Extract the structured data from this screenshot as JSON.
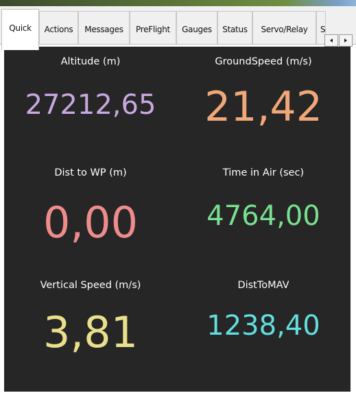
{
  "tabs": [
    {
      "label": "Quick",
      "active": true
    },
    {
      "label": "Actions",
      "active": false
    },
    {
      "label": "Messages",
      "active": false
    },
    {
      "label": "PreFlight",
      "active": false
    },
    {
      "label": "Gauges",
      "active": false
    },
    {
      "label": "Status",
      "active": false
    },
    {
      "label": "Servo/Relay",
      "active": false
    },
    {
      "label": "S",
      "active": false
    }
  ],
  "scroll_buttons": {
    "left_icon": "arrow-left-icon",
    "right_icon": "arrow-right-icon"
  },
  "quick": [
    {
      "label": "Altitude (m)",
      "value": "27212,65",
      "color": "#c9a8e0"
    },
    {
      "label": "GroundSpeed (m/s)",
      "value": "21,42",
      "color": "#f0a878"
    },
    {
      "label": "Dist to WP (m)",
      "value": "0,00",
      "color": "#ee8c8c"
    },
    {
      "label": "Time in Air (sec)",
      "value": "4764,00",
      "color": "#78e090"
    },
    {
      "label": "Vertical Speed (m/s)",
      "value": "3,81",
      "color": "#eae08c"
    },
    {
      "label": "DistToMAV",
      "value": "1238,40",
      "color": "#62dede"
    }
  ]
}
